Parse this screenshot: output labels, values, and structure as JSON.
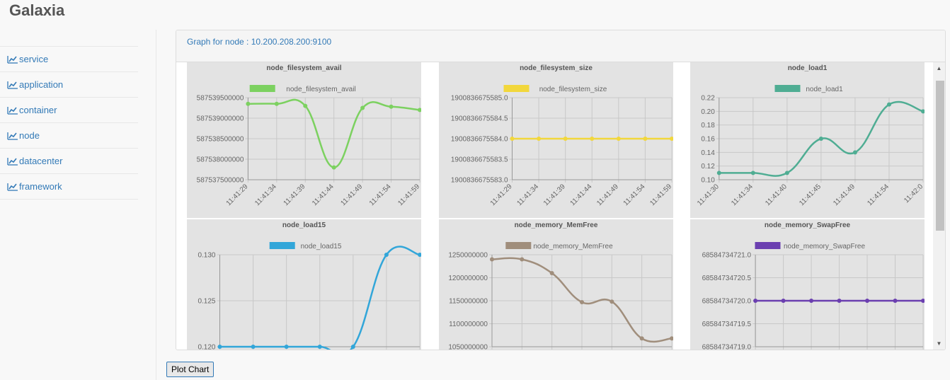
{
  "app": {
    "title": "Galaxia"
  },
  "sidebar": {
    "items": [
      {
        "label": "service"
      },
      {
        "label": "application"
      },
      {
        "label": "container"
      },
      {
        "label": "node"
      },
      {
        "label": "datacenter"
      },
      {
        "label": "framework"
      }
    ]
  },
  "panel": {
    "heading": "Graph for node :  10.200.208.200:9100"
  },
  "button": {
    "plot_label": "Plot Chart"
  },
  "chart_data": [
    {
      "type": "line",
      "title": "node_filesystem_avail",
      "series_name": "node_filesystem_avail",
      "color": "#7cd160",
      "x": [
        "11:41:29",
        "11:41:34",
        "11:41:39",
        "11:41:44",
        "11:41:49",
        "11:41:54",
        "11:41:59"
      ],
      "values": [
        587539350000,
        587539350000,
        587539300000,
        587537800000,
        587539250000,
        587539280000,
        587539200000
      ],
      "yticks": [
        "587539500000",
        "587539000000",
        "587538500000",
        "587538000000",
        "587537500000"
      ],
      "ylim": [
        587537500000,
        587539500000
      ],
      "show_x_ticks": true
    },
    {
      "type": "line",
      "title": "node_filesystem_size",
      "series_name": "node_filesystem_size",
      "color": "#f2d73c",
      "x": [
        "11:41:29",
        "11:41:34",
        "11:41:39",
        "11:41:44",
        "11:41:49",
        "11:41:54",
        "11:41:59"
      ],
      "values": [
        1900836675584.0,
        1900836675584.0,
        1900836675584.0,
        1900836675584.0,
        1900836675584.0,
        1900836675584.0,
        1900836675584.0
      ],
      "yticks": [
        "1900836675585.0",
        "1900836675584.5",
        "1900836675584.0",
        "1900836675583.5",
        "1900836675583.0"
      ],
      "ylim": [
        1900836675583.0,
        1900836675585.0
      ],
      "show_x_ticks": true
    },
    {
      "type": "line",
      "title": "node_load1",
      "series_name": "node_load1",
      "color": "#4fad93",
      "x": [
        "11:41:30",
        "11:41:34",
        "11:41:40",
        "11:41:45",
        "11:41:49",
        "11:41:54",
        "11:42:0"
      ],
      "values": [
        0.11,
        0.11,
        0.11,
        0.16,
        0.14,
        0.21,
        0.2
      ],
      "yticks": [
        "0.22",
        "0.20",
        "0.18",
        "0.16",
        "0.14",
        "0.12",
        "0.10"
      ],
      "ylim": [
        0.1,
        0.22
      ],
      "show_x_ticks": true
    },
    {
      "type": "line",
      "title": "node_load15",
      "series_name": "node_load15",
      "color": "#32a6d9",
      "x": [
        "",
        "",
        "",
        "",
        "",
        "",
        ""
      ],
      "values": [
        0.12,
        0.12,
        0.12,
        0.12,
        0.12,
        0.13,
        0.13
      ],
      "yticks": [
        "0.130",
        "0.125",
        "0.120"
      ],
      "ylim": [
        0.12,
        0.13
      ],
      "show_x_ticks": false
    },
    {
      "type": "line",
      "title": "node_memory_MemFree",
      "series_name": "node_memory_MemFree",
      "color": "#a08e7c",
      "x": [
        "",
        "",
        "",
        "",
        "",
        "",
        ""
      ],
      "values": [
        1240000000,
        1240000000,
        1210000000,
        1147000000,
        1148000000,
        1068000000,
        1068000000
      ],
      "yticks": [
        "1250000000",
        "1200000000",
        "1150000000",
        "1100000000",
        "1050000000"
      ],
      "ylim": [
        1050000000,
        1250000000
      ],
      "show_x_ticks": false
    },
    {
      "type": "line",
      "title": "node_memory_SwapFree",
      "series_name": "node_memory_SwapFree",
      "color": "#6b3fb0",
      "x": [
        "",
        "",
        "",
        "",
        "",
        "",
        ""
      ],
      "values": [
        68584734720.0,
        68584734720.0,
        68584734720.0,
        68584734720.0,
        68584734720.0,
        68584734720.0,
        68584734720.0
      ],
      "yticks": [
        "68584734721.0",
        "68584734720.5",
        "68584734720.0",
        "68584734719.5",
        "68584734719.0"
      ],
      "ylim": [
        68584734719.0,
        68584734721.0
      ],
      "show_x_ticks": false
    }
  ]
}
